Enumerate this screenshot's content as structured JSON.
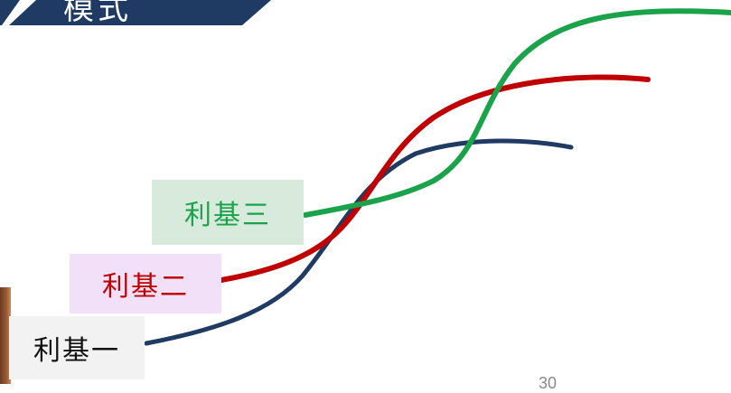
{
  "header": {
    "title": "模式"
  },
  "labels": {
    "curve_3": "利基三",
    "curve_2": "利基二",
    "curve_1": "利基一"
  },
  "footer": {
    "page_number": "30"
  },
  "colors": {
    "banner": "#1f3b64",
    "curve_3": "#1aa34a",
    "curve_2": "#c00000",
    "curve_1": "#1f3b64"
  }
}
